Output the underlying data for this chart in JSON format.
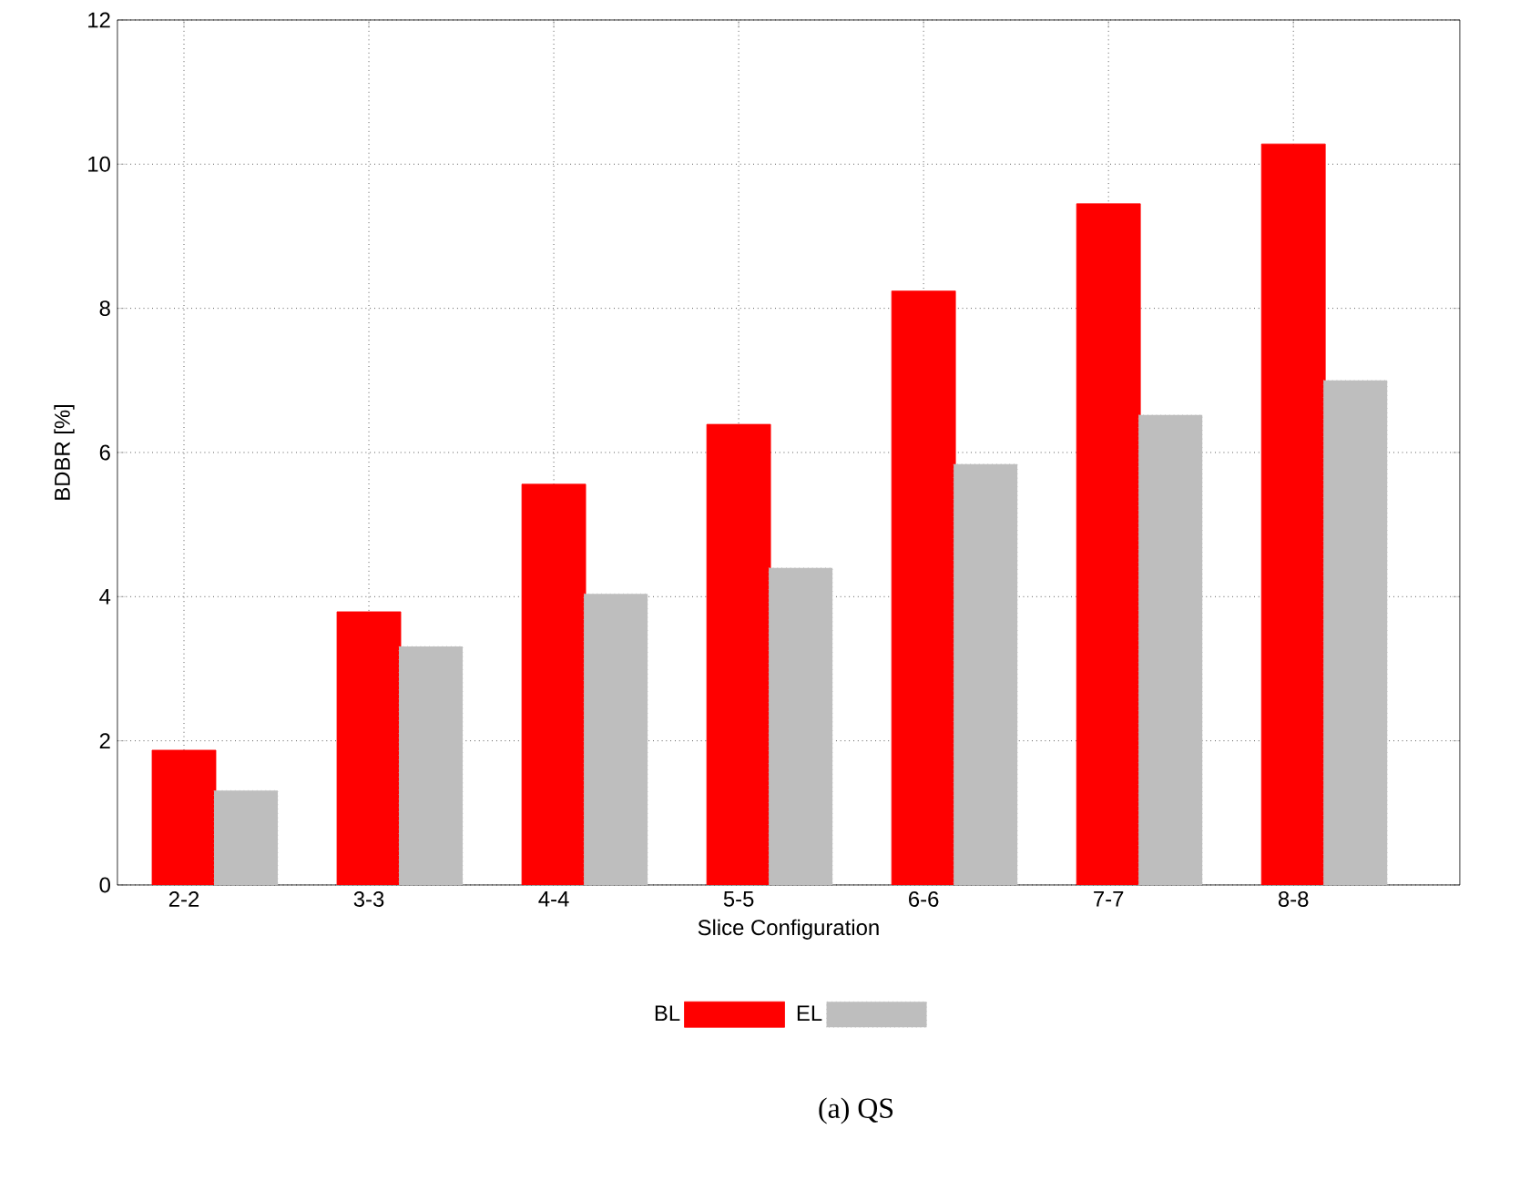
{
  "chart_data": {
    "type": "bar",
    "xlabel": "Slice Configuration",
    "ylabel": "BDBR [%]",
    "categories": [
      "2-2",
      "3-3",
      "4-4",
      "5-5",
      "6-6",
      "7-7",
      "8-8"
    ],
    "series": [
      {
        "name": "BL",
        "color": "#ff0000",
        "values": [
          1.87,
          3.79,
          5.56,
          6.39,
          8.24,
          9.45,
          10.28
        ]
      },
      {
        "name": "EL",
        "color": "#bebebe",
        "values": [
          1.31,
          3.31,
          4.04,
          4.4,
          5.84,
          6.52,
          7.0
        ]
      }
    ],
    "ylim": [
      0,
      12
    ],
    "yticks": [
      0,
      2,
      4,
      6,
      8,
      10,
      12
    ],
    "grid": true,
    "legend": "bottom",
    "annotations": [
      "(a) QS"
    ]
  }
}
